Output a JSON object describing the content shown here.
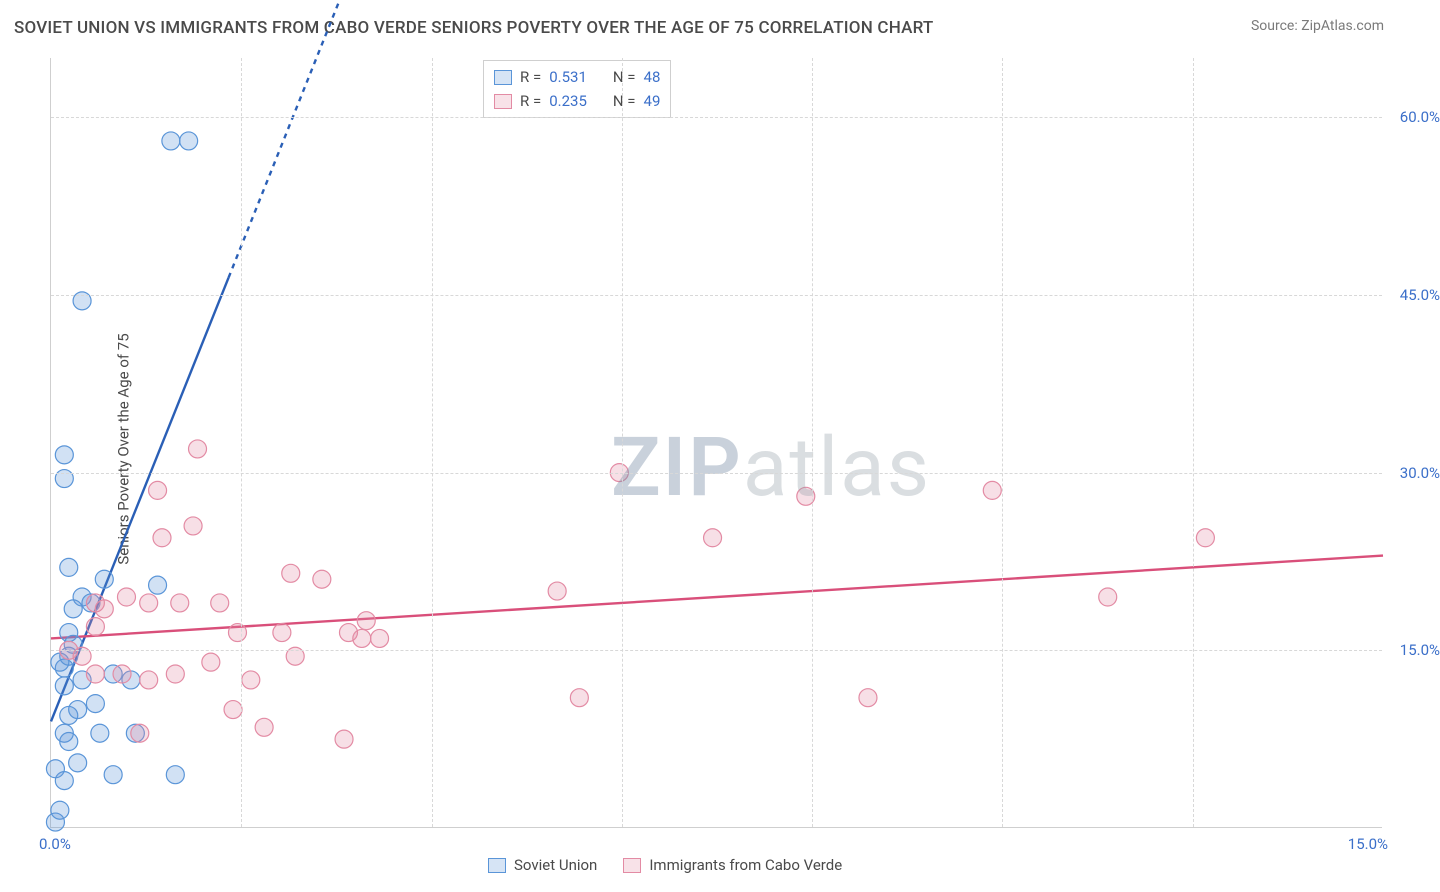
{
  "title": "SOVIET UNION VS IMMIGRANTS FROM CABO VERDE SENIORS POVERTY OVER THE AGE OF 75 CORRELATION CHART",
  "source": "Source: ZipAtlas.com",
  "yaxis_label": "Seniors Poverty Over the Age of 75",
  "watermark_bold": "ZIP",
  "watermark_rest": "atlas",
  "chart": {
    "type": "scatter",
    "background_color": "#ffffff",
    "grid_color": "#d8d8d8",
    "axis_color": "#cfcfcf",
    "tick_color": "#3b6fc9",
    "text_color": "#4a4a4a",
    "xlim": [
      0,
      15
    ],
    "ylim": [
      0,
      65
    ],
    "yticks": [
      {
        "value": 15,
        "label": "15.0%"
      },
      {
        "value": 30,
        "label": "30.0%"
      },
      {
        "value": 45,
        "label": "45.0%"
      },
      {
        "value": 60,
        "label": "60.0%"
      }
    ],
    "xgrid_values": [
      2.14,
      4.29,
      6.43,
      8.57,
      10.71,
      12.86
    ],
    "xticks": {
      "min_label": "0.0%",
      "max_label": "15.0%"
    },
    "label_fontsize": 15,
    "title_fontsize": 17,
    "marker_radius": 9,
    "marker_fill_opacity": 0.28,
    "marker_stroke_width": 1.2,
    "line_width": 2.4,
    "dash_pattern": "5 5"
  },
  "series": [
    {
      "name": "Soviet Union",
      "color": "#5a95d8",
      "line_color": "#2a5fb6",
      "points": [
        [
          0.05,
          0.5
        ],
        [
          0.1,
          1.5
        ],
        [
          0.15,
          4.0
        ],
        [
          0.05,
          5.0
        ],
        [
          0.3,
          5.5
        ],
        [
          0.7,
          4.5
        ],
        [
          1.4,
          4.5
        ],
        [
          0.15,
          8.0
        ],
        [
          0.2,
          7.3
        ],
        [
          0.55,
          8.0
        ],
        [
          0.95,
          8.0
        ],
        [
          0.2,
          9.5
        ],
        [
          0.3,
          10.0
        ],
        [
          0.5,
          10.5
        ],
        [
          0.15,
          12.0
        ],
        [
          0.35,
          12.5
        ],
        [
          0.7,
          13.0
        ],
        [
          0.9,
          12.5
        ],
        [
          0.15,
          13.5
        ],
        [
          0.1,
          14.0
        ],
        [
          0.2,
          14.5
        ],
        [
          0.25,
          15.5
        ],
        [
          0.2,
          16.5
        ],
        [
          0.25,
          18.5
        ],
        [
          0.45,
          19.0
        ],
        [
          0.35,
          19.5
        ],
        [
          0.6,
          21.0
        ],
        [
          1.2,
          20.5
        ],
        [
          0.2,
          22.0
        ],
        [
          0.15,
          29.5
        ],
        [
          0.15,
          31.5
        ],
        [
          0.35,
          44.5
        ],
        [
          1.35,
          58.0
        ],
        [
          1.55,
          58.0
        ]
      ],
      "trend": {
        "x1": 0,
        "y1": 9.0,
        "x2": 15,
        "y2": 290,
        "dashed_after_x": 2.0
      },
      "stats": {
        "R_label": "R =",
        "R": "0.531",
        "N_label": "N =",
        "N": "48"
      }
    },
    {
      "name": "Immigrants from Cabo Verde",
      "color": "#e38ba4",
      "line_color": "#d94f7a",
      "points": [
        [
          0.2,
          15.0
        ],
        [
          0.35,
          14.5
        ],
        [
          0.5,
          17.0
        ],
        [
          0.5,
          19.0
        ],
        [
          0.5,
          13.0
        ],
        [
          0.6,
          18.5
        ],
        [
          0.8,
          13.0
        ],
        [
          0.85,
          19.5
        ],
        [
          1.0,
          8.0
        ],
        [
          1.1,
          12.5
        ],
        [
          1.1,
          19.0
        ],
        [
          1.2,
          28.5
        ],
        [
          1.25,
          24.5
        ],
        [
          1.4,
          13.0
        ],
        [
          1.45,
          19.0
        ],
        [
          1.6,
          25.5
        ],
        [
          1.65,
          32.0
        ],
        [
          1.8,
          14.0
        ],
        [
          1.9,
          19.0
        ],
        [
          2.05,
          10.0
        ],
        [
          2.1,
          16.5
        ],
        [
          2.25,
          12.5
        ],
        [
          2.4,
          8.5
        ],
        [
          2.6,
          16.5
        ],
        [
          2.7,
          21.5
        ],
        [
          2.75,
          14.5
        ],
        [
          3.05,
          21.0
        ],
        [
          3.3,
          7.5
        ],
        [
          3.35,
          16.5
        ],
        [
          3.5,
          16.0
        ],
        [
          3.55,
          17.5
        ],
        [
          3.7,
          16.0
        ],
        [
          5.7,
          20.0
        ],
        [
          5.95,
          11.0
        ],
        [
          6.4,
          30.0
        ],
        [
          7.45,
          24.5
        ],
        [
          8.5,
          28.0
        ],
        [
          9.2,
          11.0
        ],
        [
          10.6,
          28.5
        ],
        [
          11.9,
          19.5
        ],
        [
          13.0,
          24.5
        ]
      ],
      "trend": {
        "x1": 0,
        "y1": 16.0,
        "x2": 15,
        "y2": 23.0
      },
      "stats": {
        "R_label": "R =",
        "R": "0.235",
        "N_label": "N =",
        "N": "49"
      }
    }
  ]
}
